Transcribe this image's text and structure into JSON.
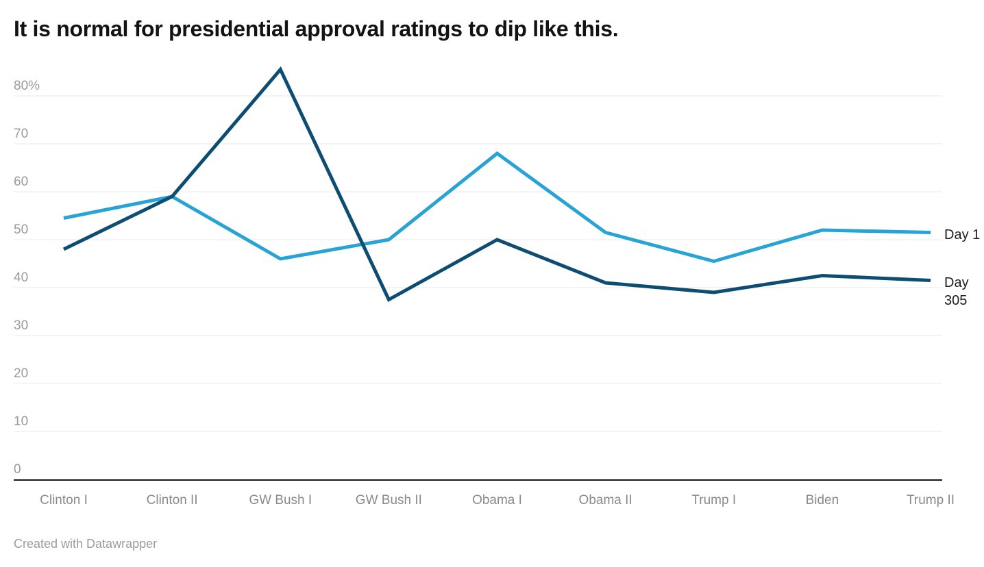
{
  "header": {
    "title": "It is normal for presidential approval ratings to dip like this."
  },
  "footer": {
    "attribution": "Created with Datawrapper"
  },
  "colors": {
    "day1_line": "#27a3d6",
    "day305_line": "#0d4d72",
    "gridline": "#e8e8e8",
    "axis_line": "#161616",
    "y_tick_text": "#9b9b9b",
    "x_label_text": "#8a8a8a",
    "line_label_text": "#1d1d1d",
    "title_text": "#131313",
    "attribution_text": "#9c9c9c"
  },
  "chart_data": {
    "type": "line",
    "title": "It is normal for presidential approval ratings to dip like this.",
    "categories": [
      "Clinton I",
      "Clinton II",
      "GW Bush I",
      "GW Bush II",
      "Obama I",
      "Obama II",
      "Trump I",
      "Biden",
      "Trump II"
    ],
    "series": [
      {
        "name": "Day 1",
        "color": "#27a3d6",
        "values": [
          54.5,
          59,
          46,
          50,
          68,
          51.5,
          45.5,
          52,
          51.5
        ]
      },
      {
        "name": "Day 305",
        "color": "#0d4d72",
        "values": [
          48,
          59,
          85.5,
          37.5,
          50,
          41,
          39,
          42.5,
          41.5
        ]
      }
    ],
    "unit": "%",
    "xlabel": "",
    "ylabel": "",
    "ylim": [
      0,
      86
    ],
    "yticks": [
      0,
      10,
      20,
      30,
      40,
      50,
      60,
      70,
      80
    ],
    "ytick_labels": [
      "0",
      "10",
      "20",
      "30",
      "40",
      "50",
      "60",
      "70",
      "80%"
    ],
    "grid": true,
    "legend_position": "line-end-labels-right",
    "attribution": "Created with Datawrapper"
  }
}
